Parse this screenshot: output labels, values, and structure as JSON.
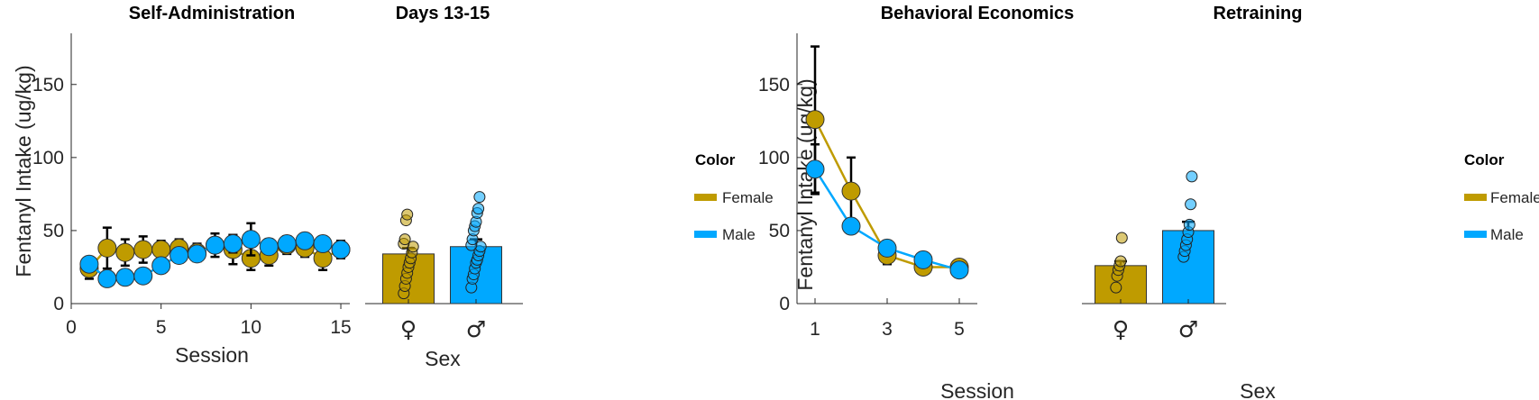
{
  "colors": {
    "female": "#BF9B00",
    "male": "#00A8FF",
    "axis": "#262626",
    "errorbar": "#000000"
  },
  "legend": {
    "title": "Color",
    "entries": [
      {
        "label": "Female",
        "color": "#BF9B00"
      },
      {
        "label": "Male",
        "color": "#00A8FF"
      }
    ]
  },
  "chart_data": [
    {
      "type": "line",
      "title": "Self-Administration",
      "xlabel": "Session",
      "ylabel": "Fentanyl Intake (ug/kg)",
      "xlim": [
        0,
        15.5
      ],
      "ylim": [
        0,
        185
      ],
      "xticks": [
        0,
        5,
        10,
        15
      ],
      "yticks": [
        0,
        50,
        100,
        150
      ],
      "series": [
        {
          "name": "Female",
          "x": [
            1,
            2,
            3,
            4,
            5,
            6,
            7,
            8,
            9,
            10,
            11,
            12,
            13,
            14,
            15
          ],
          "y": [
            24,
            38,
            35,
            37,
            37,
            38,
            35,
            40,
            37,
            31,
            33,
            40,
            38,
            31,
            37
          ],
          "err": [
            7,
            14,
            9,
            9,
            6,
            6,
            6,
            8,
            10,
            8,
            7,
            6,
            6,
            8,
            6
          ]
        },
        {
          "name": "Male",
          "x": [
            1,
            2,
            3,
            4,
            5,
            6,
            7,
            8,
            9,
            10,
            11,
            12,
            13,
            14,
            15
          ],
          "y": [
            27,
            17,
            18,
            19,
            26,
            33,
            34,
            40,
            41,
            44,
            39,
            41,
            43,
            41,
            37
          ],
          "err": [
            4,
            3,
            3,
            3,
            5,
            5,
            5,
            5,
            6,
            11,
            5,
            5,
            4,
            4,
            4
          ]
        }
      ]
    },
    {
      "type": "bar",
      "title": "Days 13-15",
      "xlabel": "Sex",
      "categories": [
        "♀",
        "♂"
      ],
      "values": [
        34,
        39
      ],
      "errors": [
        4,
        5
      ],
      "ylim": [
        0,
        185
      ],
      "points": [
        [
          7,
          12,
          17,
          21,
          25,
          28,
          31,
          35,
          39,
          41,
          44,
          57,
          61
        ],
        [
          11,
          17,
          20,
          24,
          28,
          30,
          33,
          36,
          39,
          40,
          44,
          50,
          53,
          56,
          62,
          65,
          73
        ]
      ]
    },
    {
      "type": "line",
      "title": "Behavioral Economics",
      "xlabel": "Session",
      "ylabel": "Fentanyl Intake (ug/kg)",
      "xlim": [
        0.5,
        5.5
      ],
      "ylim": [
        0,
        185
      ],
      "xticks": [
        1,
        3,
        5
      ],
      "yticks": [
        0,
        50,
        100,
        150
      ],
      "series": [
        {
          "name": "Female",
          "x": [
            1,
            2,
            3,
            4,
            5
          ],
          "y": [
            126,
            77,
            33,
            25,
            25
          ],
          "err": [
            50,
            23,
            6,
            4,
            4
          ]
        },
        {
          "name": "Male",
          "x": [
            1,
            2,
            3,
            4,
            5
          ],
          "y": [
            92,
            53,
            38,
            30,
            23
          ],
          "err": [
            17,
            5,
            5,
            5,
            3
          ]
        }
      ]
    },
    {
      "type": "bar",
      "title": "Retraining",
      "xlabel": "Sex",
      "categories": [
        "♀",
        "♂"
      ],
      "values": [
        26,
        50
      ],
      "errors": [
        3,
        6
      ],
      "ylim": [
        0,
        185
      ],
      "points": [
        [
          11,
          19,
          23,
          26,
          29,
          45
        ],
        [
          32,
          36,
          40,
          44,
          49,
          54,
          68,
          87
        ]
      ]
    }
  ]
}
